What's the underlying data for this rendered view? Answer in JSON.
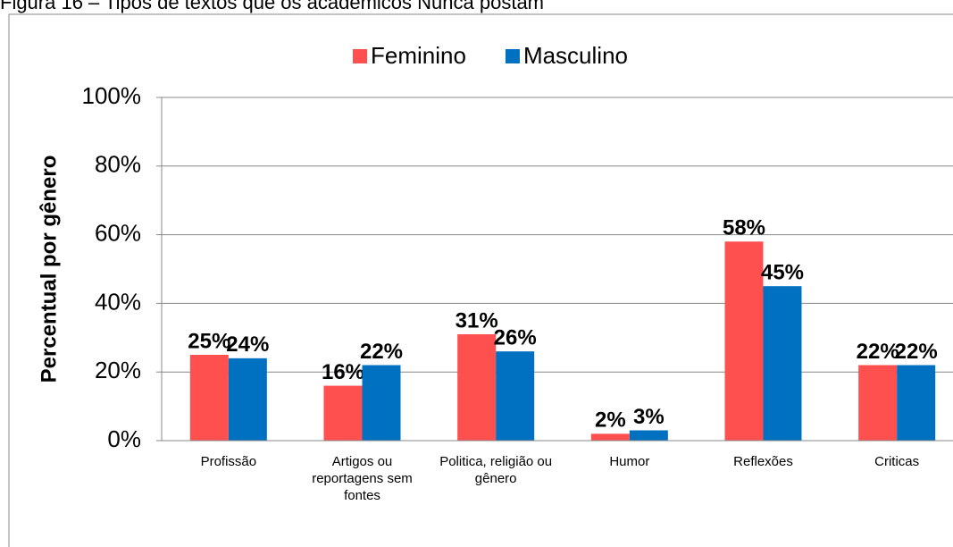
{
  "chart_data": {
    "type": "bar",
    "title": "Figura 16 – Tipos de textos que os acadêmicos Nunca postam",
    "y_label": "Percentual por gênero",
    "categories": [
      "Profissão",
      "Artigos ou reportagens sem fontes",
      "Politica, religião ou gênero",
      "Humor",
      "Reflexões",
      "Criticas"
    ],
    "series": [
      {
        "name": "Feminino",
        "color": "#ff5050",
        "values": [
          25,
          16,
          31,
          2,
          58,
          22
        ],
        "value_labels": [
          "25%",
          "16%",
          "31%",
          "2%",
          "58%",
          "22%"
        ]
      },
      {
        "name": "Masculino",
        "color": "#0070c0",
        "values": [
          24,
          22,
          26,
          3,
          45,
          22
        ],
        "value_labels": [
          "24%",
          "22%",
          "26%",
          "3%",
          "45%",
          "22%"
        ]
      }
    ],
    "ylim": [
      0,
      100
    ],
    "yticks": [
      {
        "value": 0,
        "label": "0%"
      },
      {
        "value": 20,
        "label": "20%"
      },
      {
        "value": 40,
        "label": "40%"
      },
      {
        "value": 60,
        "label": "60%"
      },
      {
        "value": 80,
        "label": "80%"
      },
      {
        "value": 100,
        "label": "100%"
      }
    ],
    "grid": true,
    "legend": "top"
  }
}
